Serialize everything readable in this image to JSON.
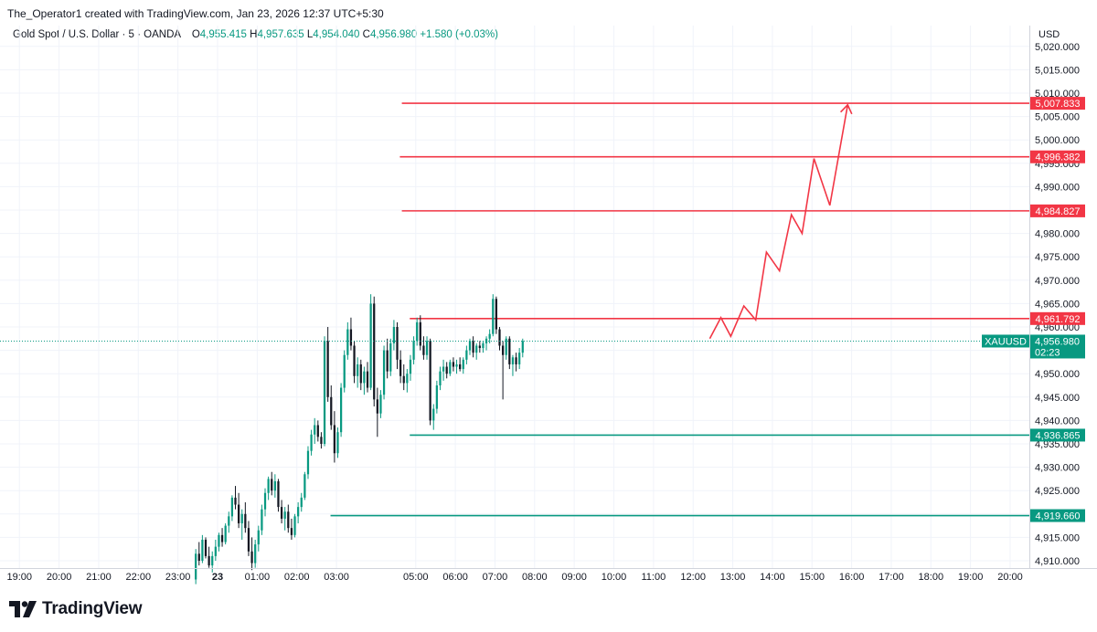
{
  "header": {
    "credit": "The_Operator1 created with TradingView.com, Jan 23, 2026 12:37 UTC+5:30",
    "symbol": "Gold Spot / U.S. Dollar · 5 · OANDA",
    "o_label": "O",
    "o_value": "4,955.415",
    "h_label": "H",
    "h_value": "4,957.635",
    "l_label": "L",
    "l_value": "4,954.040",
    "c_label": "C",
    "c_value": "4,956.980",
    "change": "+1.580 (+0.03%)",
    "currency": "USD"
  },
  "branding": {
    "logo_icon": "tradingview-logo-icon",
    "logo_text": "TradingView"
  },
  "chart_data": {
    "type": "candlestick",
    "symbol": "XAUUSD",
    "ylim": [
      4907,
      5025
    ],
    "y_ticks": [
      4910,
      4915,
      4920,
      4925,
      4930,
      4935,
      4940,
      4945,
      4950,
      4955,
      4960,
      4965,
      4970,
      4975,
      4980,
      4985,
      4990,
      4995,
      5000,
      5005,
      5010,
      5015,
      5020
    ],
    "y_tick_labels": [
      "4,910.000",
      "4,915.000",
      "4,920.000",
      "4,925.000",
      "4,930.000",
      "4,935.000",
      "4,940.000",
      "4,945.000",
      "4,950.000",
      "4,955.000",
      "4,960.000",
      "4,965.000",
      "4,970.000",
      "4,975.000",
      "4,980.000",
      "4,985.000",
      "4,990.000",
      "4,995.000",
      "5,000.000",
      "5,005.000",
      "5,010.000",
      "5,015.000",
      "5,020.000"
    ],
    "x_ticks": [
      "19:00",
      "20:00",
      "21:00",
      "22:00",
      "23:00",
      "23",
      "01:00",
      "02:00",
      "03:00",
      "05:00",
      "06:00",
      "07:00",
      "08:00",
      "09:00",
      "10:00",
      "11:00",
      "12:00",
      "13:00",
      "14:00",
      "15:00",
      "16:00",
      "17:00",
      "18:00",
      "19:00",
      "20:00",
      "21:00"
    ],
    "x_tick_hours": [
      -5,
      -4,
      -3,
      -2,
      -1,
      0,
      1,
      2,
      3,
      5,
      6,
      7,
      8,
      9,
      10,
      11,
      12,
      13,
      14,
      15,
      16,
      17,
      18,
      19,
      20,
      21
    ],
    "bold_tick": "23",
    "candle_start_hour": -0.55,
    "candle_interval_hours": 0.08333,
    "candles": [
      [
        4906.0,
        4912.5,
        4905.0,
        4911.5
      ],
      [
        4911.5,
        4914.0,
        4909.0,
        4910.0
      ],
      [
        4910.0,
        4915.5,
        4909.5,
        4914.5
      ],
      [
        4914.5,
        4915.0,
        4910.5,
        4911.0
      ],
      [
        4911.0,
        4913.0,
        4908.5,
        4909.0
      ],
      [
        4909.0,
        4912.0,
        4907.5,
        4911.0
      ],
      [
        4911.0,
        4914.5,
        4910.0,
        4913.0
      ],
      [
        4913.0,
        4916.0,
        4912.0,
        4915.5
      ],
      [
        4915.5,
        4917.0,
        4913.0,
        4914.0
      ],
      [
        4914.0,
        4918.0,
        4913.5,
        4917.5
      ],
      [
        4917.5,
        4920.5,
        4916.0,
        4919.5
      ],
      [
        4919.5,
        4924.0,
        4918.5,
        4923.5
      ],
      [
        4923.5,
        4926.0,
        4921.0,
        4922.0
      ],
      [
        4922.0,
        4924.5,
        4917.0,
        4918.0
      ],
      [
        4918.0,
        4921.0,
        4914.5,
        4920.0
      ],
      [
        4920.0,
        4922.5,
        4916.0,
        4917.0
      ],
      [
        4917.0,
        4918.5,
        4911.0,
        4912.0
      ],
      [
        4912.0,
        4915.0,
        4908.0,
        4909.5
      ],
      [
        4909.5,
        4914.5,
        4908.5,
        4913.5
      ],
      [
        4913.5,
        4917.5,
        4912.0,
        4916.5
      ],
      [
        4916.5,
        4922.0,
        4915.5,
        4921.0
      ],
      [
        4921.0,
        4925.5,
        4919.5,
        4924.5
      ],
      [
        4924.5,
        4928.0,
        4923.0,
        4927.5
      ],
      [
        4927.5,
        4929.0,
        4924.0,
        4925.0
      ],
      [
        4925.0,
        4928.5,
        4923.5,
        4927.0
      ],
      [
        4927.0,
        4927.5,
        4920.5,
        4921.5
      ],
      [
        4921.5,
        4923.0,
        4918.0,
        4919.0
      ],
      [
        4919.0,
        4921.5,
        4916.5,
        4920.5
      ],
      [
        4920.5,
        4922.0,
        4916.0,
        4917.0
      ],
      [
        4917.0,
        4919.0,
        4914.5,
        4915.5
      ],
      [
        4915.5,
        4920.0,
        4915.0,
        4919.5
      ],
      [
        4919.5,
        4922.5,
        4918.0,
        4921.5
      ],
      [
        4921.5,
        4924.5,
        4920.5,
        4923.5
      ],
      [
        4923.5,
        4929.0,
        4923.0,
        4928.5
      ],
      [
        4928.5,
        4934.5,
        4927.5,
        4933.5
      ],
      [
        4933.5,
        4938.0,
        4932.5,
        4937.0
      ],
      [
        4937.0,
        4940.5,
        4935.0,
        4939.0
      ],
      [
        4939.0,
        4940.0,
        4935.5,
        4936.5
      ],
      [
        4936.5,
        4937.5,
        4934.0,
        4935.0
      ],
      [
        4935.0,
        4958.0,
        4934.5,
        4957.0
      ],
      [
        4957.0,
        4960.0,
        4944.0,
        4945.0
      ],
      [
        4945.0,
        4947.5,
        4938.0,
        4939.0
      ],
      [
        4939.0,
        4942.0,
        4931.0,
        4933.0
      ],
      [
        4933.0,
        4938.5,
        4932.0,
        4937.5
      ],
      [
        4937.5,
        4948.0,
        4936.5,
        4947.0
      ],
      [
        4947.0,
        4955.0,
        4946.0,
        4954.0
      ],
      [
        4954.0,
        4961.0,
        4953.0,
        4959.5
      ],
      [
        4959.5,
        4962.0,
        4955.0,
        4956.0
      ],
      [
        4956.0,
        4957.0,
        4948.0,
        4949.5
      ],
      [
        4949.5,
        4953.5,
        4947.0,
        4952.0
      ],
      [
        4952.0,
        4953.0,
        4946.5,
        4948.0
      ],
      [
        4948.0,
        4951.5,
        4945.5,
        4950.5
      ],
      [
        4950.5,
        4952.5,
        4946.0,
        4947.0
      ],
      [
        4947.0,
        4967.0,
        4946.5,
        4965.0
      ],
      [
        4965.0,
        4966.5,
        4943.0,
        4944.5
      ],
      [
        4944.5,
        4947.0,
        4936.5,
        4941.5
      ],
      [
        4941.5,
        4946.5,
        4940.5,
        4945.5
      ],
      [
        4945.5,
        4956.0,
        4944.5,
        4955.0
      ],
      [
        4955.0,
        4957.5,
        4949.0,
        4950.5
      ],
      [
        4950.5,
        4957.5,
        4949.5,
        4956.5
      ],
      [
        4956.5,
        4961.5,
        4955.0,
        4960.0
      ],
      [
        4960.0,
        4961.0,
        4951.0,
        4953.0
      ],
      [
        4953.0,
        4955.0,
        4948.0,
        4949.5
      ],
      [
        4949.5,
        4952.0,
        4946.5,
        4948.0
      ],
      [
        4948.0,
        4951.0,
        4946.0,
        4950.0
      ],
      [
        4950.0,
        4954.0,
        4948.5,
        4953.0
      ],
      [
        4953.0,
        4958.0,
        4952.0,
        4957.0
      ],
      [
        4957.0,
        4962.0,
        4956.0,
        4961.0
      ],
      [
        4961.0,
        4962.5,
        4955.0,
        4956.0
      ],
      [
        4956.0,
        4958.0,
        4953.0,
        4954.0
      ],
      [
        4954.0,
        4958.0,
        4953.0,
        4957.0
      ],
      [
        4957.0,
        4957.5,
        4939.0,
        4940.0
      ],
      [
        4940.0,
        4943.5,
        4938.0,
        4942.5
      ],
      [
        4942.5,
        4948.5,
        4941.5,
        4947.5
      ],
      [
        4947.5,
        4951.5,
        4946.5,
        4950.5
      ],
      [
        4950.5,
        4953.0,
        4948.5,
        4951.5
      ],
      [
        4951.5,
        4952.5,
        4949.0,
        4950.0
      ],
      [
        4950.0,
        4953.0,
        4949.5,
        4952.5
      ],
      [
        4952.5,
        4953.5,
        4950.5,
        4951.5
      ],
      [
        4951.5,
        4953.0,
        4950.0,
        4952.0
      ],
      [
        4952.0,
        4953.5,
        4950.5,
        4951.0
      ],
      [
        4951.0,
        4953.5,
        4950.0,
        4953.0
      ],
      [
        4953.0,
        4956.0,
        4952.0,
        4955.0
      ],
      [
        4955.0,
        4957.5,
        4954.0,
        4957.0
      ],
      [
        4957.0,
        4958.0,
        4953.5,
        4954.5
      ],
      [
        4954.5,
        4956.5,
        4953.0,
        4956.0
      ],
      [
        4956.0,
        4957.0,
        4954.5,
        4955.5
      ],
      [
        4955.5,
        4957.0,
        4954.5,
        4956.5
      ],
      [
        4956.5,
        4958.0,
        4955.0,
        4957.5
      ],
      [
        4957.5,
        4959.5,
        4956.5,
        4958.5
      ],
      [
        4958.5,
        4967.0,
        4958.0,
        4966.0
      ],
      [
        4966.0,
        4966.5,
        4958.5,
        4959.5
      ],
      [
        4959.5,
        4960.0,
        4955.0,
        4956.0
      ],
      [
        4956.0,
        4957.0,
        4944.5,
        4954.0
      ],
      [
        4954.0,
        4958.0,
        4953.0,
        4957.5
      ],
      [
        4957.5,
        4958.0,
        4951.0,
        4952.0
      ],
      [
        4952.0,
        4954.0,
        4949.5,
        4953.5
      ],
      [
        4953.5,
        4954.5,
        4950.5,
        4952.0
      ],
      [
        4952.0,
        4955.5,
        4951.0,
        4954.5
      ],
      [
        4954.5,
        4957.5,
        4953.5,
        4957.0
      ]
    ],
    "horizontal_levels": [
      {
        "price": 5007.833,
        "label": "5,007.833",
        "color": "#f23645",
        "x_start_hour": 4.65
      },
      {
        "price": 4996.382,
        "label": "4,996.382",
        "color": "#f23645",
        "x_start_hour": 4.6
      },
      {
        "price": 4984.827,
        "label": "4,984.827",
        "color": "#f23645",
        "x_start_hour": 4.65
      },
      {
        "price": 4961.792,
        "label": "4,961.792",
        "color": "#f23645",
        "x_start_hour": 4.85
      },
      {
        "price": 4936.865,
        "label": "4,936.865",
        "color": "#089981",
        "x_start_hour": 4.85
      },
      {
        "price": 4919.66,
        "label": "4,919.660",
        "color": "#089981",
        "x_start_hour": 2.85
      }
    ],
    "projection_path": {
      "color": "#f23645",
      "points": [
        [
          12.42,
          4957.5
        ],
        [
          12.7,
          4962.0
        ],
        [
          12.95,
          4958.0
        ],
        [
          13.28,
          4964.5
        ],
        [
          13.58,
          4961.5
        ],
        [
          13.85,
          4976.0
        ],
        [
          14.18,
          4972.0
        ],
        [
          14.48,
          4984.0
        ],
        [
          14.75,
          4980.0
        ],
        [
          15.05,
          4996.0
        ],
        [
          15.45,
          4986.0
        ],
        [
          15.9,
          5007.5
        ]
      ],
      "arrowhead": true
    },
    "current_price": {
      "symbol_label": "XAUUSD",
      "price": 4956.98,
      "price_label": "4,956.980",
      "countdown": "02:23",
      "color": "#089981"
    }
  }
}
